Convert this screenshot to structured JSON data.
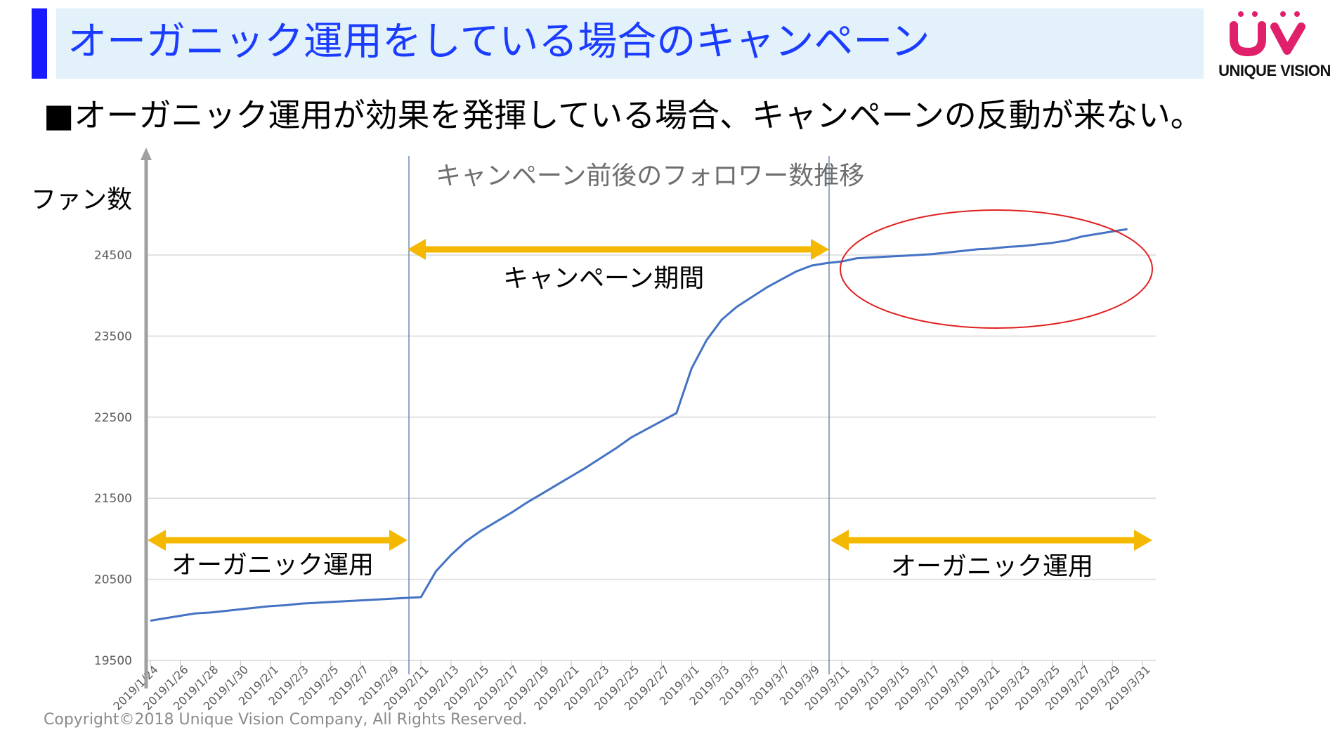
{
  "slide": {
    "title": "オーガニック運用をしている場合のキャンペーン",
    "subtitle": "■オーガニック運用が効果を発揮している場合、キャンペーンの反動が来ない。",
    "logo_text": "UNIQUE VISION",
    "copyright": "Copyright©2018 Unique Vision Company, All Rights Reserved."
  },
  "colors": {
    "title_accent": "#1a1aff",
    "title_bg": "#e3f1fb",
    "title_text": "#1a3cff",
    "series_line": "#4472c4",
    "arrow": "#f5b800",
    "ellipse": "#e02020",
    "logo": "#e0206a"
  },
  "chart_data": {
    "type": "line",
    "title": "キャンペーン前後のフォロワー数推移",
    "ylabel": "ファン数",
    "xlabel": "",
    "ylim": [
      19500,
      25000
    ],
    "yticks": [
      "19500",
      "20500",
      "21500",
      "22500",
      "23500",
      "24500"
    ],
    "grid": true,
    "x_tick_labels": [
      "2019/1/24",
      "2019/1/26",
      "2019/1/28",
      "2019/1/30",
      "2019/2/1",
      "2019/2/3",
      "2019/2/5",
      "2019/2/7",
      "2019/2/9",
      "2019/2/11",
      "2019/2/13",
      "2019/2/15",
      "2019/2/17",
      "2019/2/19",
      "2019/2/21",
      "2019/2/23",
      "2019/2/25",
      "2019/2/27",
      "2019/3/1",
      "2019/3/3",
      "2019/3/5",
      "2019/3/7",
      "2019/3/9",
      "2019/3/11",
      "2019/3/13",
      "2019/3/15",
      "2019/3/17",
      "2019/3/19",
      "2019/3/21",
      "2019/3/23",
      "2019/3/25",
      "2019/3/27",
      "2019/3/29",
      "2019/3/31"
    ],
    "series": [
      {
        "x_start": "2019/1/24",
        "values": [
          19990,
          20020,
          20050,
          20080,
          20090,
          20110,
          20130,
          20150,
          20170,
          20180,
          20200,
          20210,
          20220,
          20230,
          20240,
          20250,
          20260,
          20270,
          20280,
          20600,
          20800,
          20970,
          21100,
          21210,
          21320,
          21440,
          21550,
          21660,
          21770,
          21880,
          22000,
          22120,
          22250,
          22350,
          22450,
          22550,
          23100,
          23450,
          23700,
          23860,
          23980,
          24100,
          24200,
          24300,
          24370,
          24400,
          24420,
          24460,
          24470,
          24480,
          24490,
          24500,
          24510,
          24530,
          24550,
          24570,
          24580,
          24600,
          24610,
          24630,
          24650,
          24680,
          24730,
          24760,
          24790,
          24820
        ]
      }
    ],
    "annotations": {
      "campaign_period": "キャンペーン期間",
      "organic_before": "オーガニック運用",
      "organic_after": "オーガニック運用"
    }
  }
}
